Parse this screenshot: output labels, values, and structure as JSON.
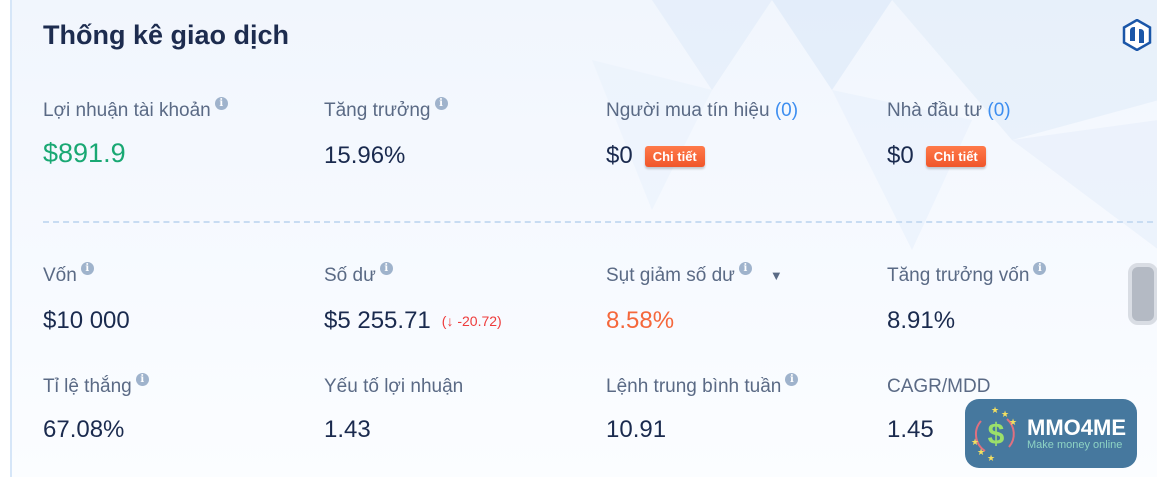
{
  "header": {
    "title": "Thống kê giao dịch",
    "logo_icon": "hexagon-brand-icon"
  },
  "colors": {
    "profit": "#19a873",
    "accent_orange": "#f5673b",
    "count": "#3d8ef0",
    "delta_negative": "#ee3b3b"
  },
  "row1": [
    {
      "label": "Lợi nhuận tài khoản",
      "value": "$891.9"
    },
    {
      "label": "Tăng trưởng",
      "value": "15.96%"
    },
    {
      "label": "Người mua tín hiệu",
      "count": "(0)",
      "value": "$0",
      "button": "Chi tiết"
    },
    {
      "label": "Nhà đầu tư",
      "count": "(0)",
      "value": "$0",
      "button": "Chi tiết"
    }
  ],
  "row2": [
    {
      "label": "Vốn",
      "value": "$10 000"
    },
    {
      "label": "Số dư",
      "value": "$5 255.71",
      "delta": "(↓ -20.72)"
    },
    {
      "label": "Sụt giảm số dư",
      "value": "8.58%"
    },
    {
      "label": "Tăng trưởng vốn",
      "value": "8.91%"
    }
  ],
  "row3": [
    {
      "label": "Tỉ lệ thắng",
      "value": "67.08%"
    },
    {
      "label": "Yếu tố lợi nhuận",
      "value": "1.43"
    },
    {
      "label": "Lệnh trung bình tuần",
      "value": "10.91"
    },
    {
      "label": "CAGR/MDD",
      "value": "1.45"
    }
  ],
  "watermark": {
    "name": "MMO4ME",
    "tagline": "Make money online"
  }
}
